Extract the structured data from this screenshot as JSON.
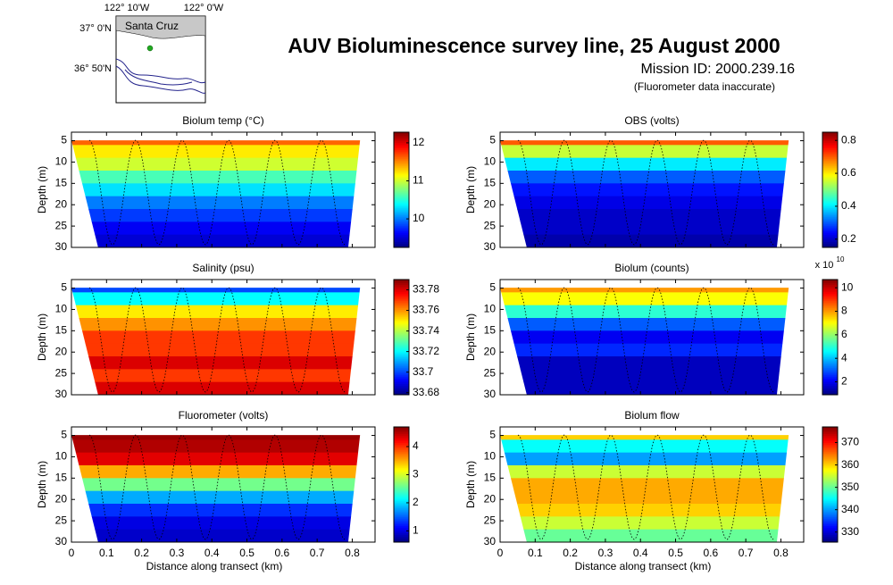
{
  "header": {
    "title": "AUV Bioluminescence survey line, 25 August 2000",
    "mission": "Mission ID: 2000.239.16",
    "note": "(Fluorometer data inaccurate)"
  },
  "map": {
    "xticks": [
      "122° 10'W",
      "122° 0'W"
    ],
    "yticks": [
      "37° 0'N",
      "36° 50'N"
    ],
    "place": "Santa Cruz"
  },
  "chart_data": [
    {
      "type": "heatmap",
      "title": "Biolum temp (°C)",
      "ylabel": "Depth (m)",
      "xlim": [
        0,
        0.865
      ],
      "xticks": [
        0,
        0.1,
        0.2,
        0.3,
        0.4,
        0.5,
        0.6,
        0.7,
        0.8
      ],
      "ylim": [
        30,
        3
      ],
      "yticks": [
        5,
        10,
        15,
        20,
        25,
        30
      ],
      "depth_bins": [
        3,
        6,
        9,
        12,
        15,
        18,
        21,
        24,
        27,
        30
      ],
      "values": [
        11.6,
        11.2,
        11.0,
        10.6,
        10.3,
        10.0,
        9.8,
        9.6,
        9.5
      ],
      "clim": [
        9.25,
        12.28
      ],
      "cticks": [
        10,
        11,
        12
      ]
    },
    {
      "type": "heatmap",
      "title": "OBS (volts)",
      "ylabel": "Depth (m)",
      "xlim": [
        0,
        0.865
      ],
      "xticks": [
        0,
        0.1,
        0.2,
        0.3,
        0.4,
        0.5,
        0.6,
        0.7,
        0.8
      ],
      "ylim": [
        30,
        3
      ],
      "yticks": [
        5,
        10,
        15,
        20,
        25,
        30
      ],
      "depth_bins": [
        3,
        6,
        9,
        12,
        15,
        18,
        21,
        24,
        27,
        30
      ],
      "values": [
        0.7,
        0.55,
        0.4,
        0.3,
        0.25,
        0.22,
        0.2,
        0.2,
        0.18
      ],
      "clim": [
        0.15,
        0.85
      ],
      "cticks": [
        0.2,
        0.4,
        0.6,
        0.8
      ]
    },
    {
      "type": "heatmap",
      "title": "Salinity (psu)",
      "ylabel": "Depth (m)",
      "xlim": [
        0,
        0.865
      ],
      "xticks": [
        0,
        0.1,
        0.2,
        0.3,
        0.4,
        0.5,
        0.6,
        0.7,
        0.8
      ],
      "ylim": [
        30,
        3
      ],
      "yticks": [
        5,
        10,
        15,
        20,
        25,
        30
      ],
      "depth_bins": [
        3,
        6,
        9,
        12,
        15,
        18,
        21,
        24,
        27,
        30
      ],
      "values": [
        33.7,
        33.72,
        33.75,
        33.76,
        33.77,
        33.77,
        33.78,
        33.77,
        33.78
      ],
      "clim": [
        33.678,
        33.79
      ],
      "cticks": [
        33.68,
        33.7,
        33.72,
        33.74,
        33.76,
        33.78
      ]
    },
    {
      "type": "heatmap",
      "title": "Biolum (counts)",
      "ylabel": "Depth (m)",
      "xlim": [
        0,
        0.865
      ],
      "xticks": [
        0,
        0.1,
        0.2,
        0.3,
        0.4,
        0.5,
        0.6,
        0.7,
        0.8
      ],
      "ylim": [
        30,
        3
      ],
      "yticks": [
        5,
        10,
        15,
        20,
        25,
        30
      ],
      "depth_bins": [
        3,
        6,
        9,
        12,
        15,
        18,
        21,
        24,
        27,
        30
      ],
      "values": [
        8,
        7,
        5,
        3,
        2,
        2.5,
        1.5,
        1.5,
        1.5
      ],
      "clim": [
        0.9,
        10.7
      ],
      "cticks": [
        2,
        4,
        6,
        8,
        10
      ],
      "cscale": {
        "base": "x 10",
        "exponent": "10"
      }
    },
    {
      "type": "heatmap",
      "title": "Fluorometer (volts)",
      "ylabel": "Depth (m)",
      "xlabel": "Distance along transect (km)",
      "xlim": [
        0,
        0.865
      ],
      "xticks": [
        0,
        0.1,
        0.2,
        0.3,
        0.4,
        0.5,
        0.6,
        0.7,
        0.8
      ],
      "ylim": [
        30,
        3
      ],
      "yticks": [
        5,
        10,
        15,
        20,
        25,
        30
      ],
      "depth_bins": [
        3,
        6,
        9,
        12,
        15,
        18,
        21,
        24,
        27,
        30
      ],
      "values": [
        4.6,
        4.5,
        4.3,
        3.5,
        2.6,
        1.8,
        1.3,
        1,
        0.9
      ],
      "clim": [
        0.6,
        4.7
      ],
      "cticks": [
        1,
        2,
        3,
        4
      ]
    },
    {
      "type": "heatmap",
      "title": "Biolum flow",
      "ylabel": "Depth (m)",
      "xlabel": "Distance along transect (km)",
      "xlim": [
        0,
        0.865
      ],
      "xticks": [
        0,
        0.1,
        0.2,
        0.3,
        0.4,
        0.5,
        0.6,
        0.7,
        0.8
      ],
      "ylim": [
        30,
        3
      ],
      "yticks": [
        5,
        10,
        15,
        20,
        25,
        30
      ],
      "depth_bins": [
        3,
        6,
        9,
        12,
        15,
        18,
        21,
        24,
        27,
        30
      ],
      "values": [
        360,
        345,
        340,
        355,
        362,
        362,
        360,
        355,
        350
      ],
      "clim": [
        325.5,
        377
      ],
      "cticks": [
        330,
        340,
        350,
        360,
        370
      ]
    }
  ]
}
